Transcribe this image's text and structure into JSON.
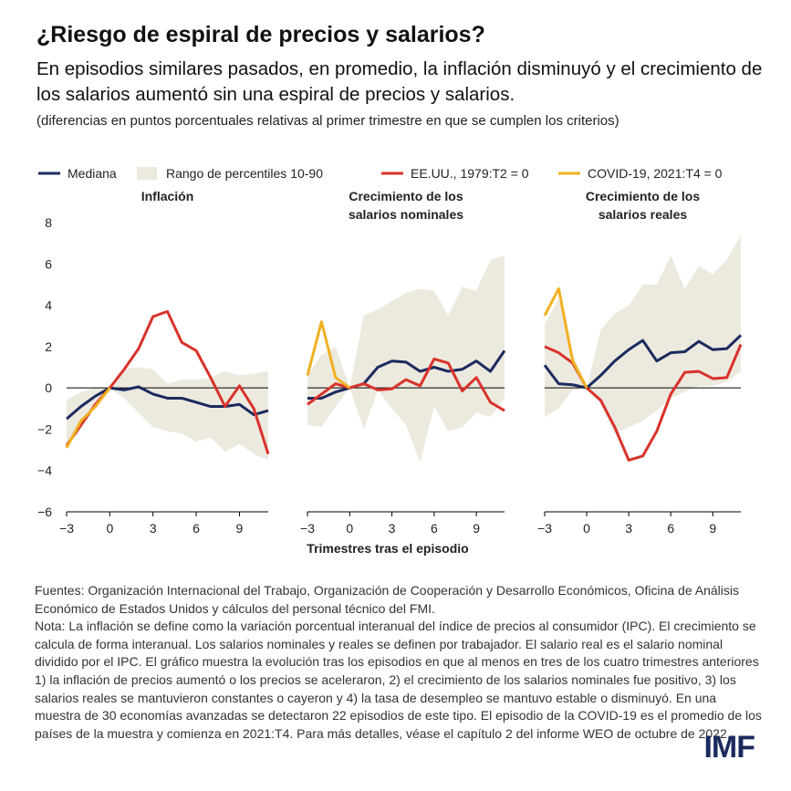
{
  "title": "¿Riesgo de espiral de precios y salarios?",
  "subtitle": "En episodios similares pasados, en promedio, la inflación disminuyó y el crecimiento de los salarios aumentó sin una espiral de precios y salarios.",
  "units_note": "(diferencias en puntos porcentuales relativas al primer trimestre en que se cumplen los criterios)",
  "notes": [
    "Fuentes: Organización Internacional del Trabajo, Organización de Cooperación y Desarrollo Económicos, Oficina de Análisis Económico de Estados Unidos y cálculos del personal técnico del FMI.",
    "Nota: La inflación se define como la variación porcentual interanual del índice de precios al consumidor (IPC). El crecimiento se calcula de forma interanual. Los salarios nominales y reales se definen por trabajador. El salario real es el salario nominal dividido por el IPC. El gráfico muestra la evolución tras los episodios en que al menos en tres de los cuatro trimestres anteriores 1) la inflación de precios aumentó o los precios se aceleraron, 2) el crecimiento de los salarios nominales fue positivo, 3) los salarios reales se mantuvieron constantes o cayeron y 4) la tasa de desempleo se mantuvo estable o disminuyó. En una muestra de 30 economías avanzadas se detectaron 22 episodios de este tipo. El episodio de la COVID-19 es el promedio de los países de la muestra y comienza en 2021:T4. Para más detalles, véase el capítulo 2 del informe WEO de octubre de 2022."
  ],
  "logo": "IMF",
  "chart_data": [
    {
      "type": "line",
      "title": "Inflación",
      "x": [
        -3,
        -2,
        -1,
        0,
        1,
        2,
        3,
        4,
        5,
        6,
        7,
        8,
        9,
        10,
        11
      ],
      "series": [
        {
          "name": "Rango de percentiles 10-90",
          "color": "#ece9df",
          "lower": [
            -2.8,
            -2,
            -0.9,
            0,
            -0.5,
            -1.2,
            -1.9,
            -2.1,
            -2.2,
            -2.6,
            -2.4,
            -3.1,
            -2.7,
            -3.2,
            -3.5
          ],
          "upper": [
            -0.6,
            -0.2,
            0,
            0,
            0.9,
            1,
            0.9,
            0.2,
            0.4,
            0.4,
            0.5,
            0.8,
            0.6,
            0.7,
            0.8
          ]
        },
        {
          "name": "Mediana",
          "color": "#1b2a5e",
          "values": [
            -1.5,
            -0.9,
            -0.4,
            0,
            -0.1,
            0.05,
            -0.3,
            -0.5,
            -0.5,
            -0.7,
            -0.9,
            -0.9,
            -0.8,
            -1.3,
            -1.1
          ]
        },
        {
          "name": "EE.UU., 1979:T2 = 0",
          "color": "#d9322a",
          "values": [
            -2.8,
            -1.8,
            -0.8,
            0,
            0.9,
            1.9,
            3.45,
            3.7,
            2.2,
            1.8,
            0.5,
            -0.9,
            0.1,
            -1,
            -3.2
          ]
        },
        {
          "name": "COVID-19, 2021:T4 = 0",
          "color": "#f0b020",
          "values": [
            -2.9,
            -1.6,
            -0.9,
            0,
            null,
            null,
            null,
            null,
            null,
            null,
            null,
            null,
            null,
            null,
            null
          ]
        }
      ],
      "xlim": [
        -3,
        11
      ],
      "xticks": [
        {
          "value": -3,
          "label": "−3"
        },
        0,
        3,
        6,
        9
      ],
      "ylim": [
        -6,
        8
      ],
      "yticks": [
        {
          "value": -6,
          "label": "−6"
        },
        {
          "value": -4,
          "label": "−4"
        },
        {
          "value": -2,
          "label": "−2"
        },
        0,
        2,
        4,
        6,
        8
      ]
    },
    {
      "type": "line",
      "title": "Crecimiento de los salarios nominales",
      "x_label": "Trimestres tras el episodio",
      "x": [
        -3,
        -2,
        -1,
        0,
        1,
        2,
        3,
        4,
        5,
        6,
        7,
        8,
        9,
        10,
        11
      ],
      "series": [
        {
          "name": "Rango de percentiles 10-90",
          "color": "#ece9df",
          "lower": [
            -1.8,
            -1.9,
            -0.9,
            0,
            -2,
            -0.1,
            -1,
            -1.8,
            -3.6,
            -0.9,
            -2.1,
            -1.9,
            -1.2,
            -1.4,
            -0.5
          ],
          "upper": [
            0.6,
            1.6,
            2,
            0,
            3.5,
            3.8,
            4.2,
            4.6,
            4.8,
            4.7,
            3.5,
            4.9,
            4.7,
            6.2,
            6.4
          ]
        },
        {
          "name": "Mediana",
          "color": "#1b2a5e",
          "values": [
            -0.5,
            -0.5,
            -0.2,
            0,
            0.2,
            1,
            1.3,
            1.25,
            0.8,
            1,
            0.8,
            0.9,
            1.3,
            0.8,
            1.8
          ]
        },
        {
          "name": "EE.UU., 1979:T2 = 0",
          "color": "#d9322a",
          "values": [
            -0.8,
            -0.3,
            0.2,
            0,
            0.2,
            -0.1,
            -0.05,
            0.4,
            0.1,
            1.4,
            1.2,
            -0.15,
            0.5,
            -0.7,
            -1.1
          ]
        },
        {
          "name": "COVID-19, 2021:T4 = 0",
          "color": "#f0b020",
          "values": [
            0.6,
            3.2,
            0.5,
            0,
            null,
            null,
            null,
            null,
            null,
            null,
            null,
            null,
            null,
            null,
            null
          ]
        }
      ],
      "xlim": [
        -3,
        11
      ],
      "xticks": [
        {
          "value": -3,
          "label": "−3"
        },
        0,
        3,
        6,
        9
      ],
      "ylim": [
        -6,
        8
      ]
    },
    {
      "type": "line",
      "title": "Crecimiento de los salarios reales",
      "x": [
        -3,
        -2,
        -1,
        0,
        1,
        2,
        3,
        4,
        5,
        6,
        7,
        8,
        9,
        10,
        11
      ],
      "series": [
        {
          "name": "Rango de percentiles 10-90",
          "color": "#ece9df",
          "lower": [
            -1.4,
            -1,
            -0.1,
            0,
            -0.8,
            -2.2,
            -1.9,
            -1.6,
            -1.1,
            -0.5,
            -0.2,
            0.1,
            0.1,
            0.3,
            0.8
          ],
          "upper": [
            3.1,
            4.3,
            1.7,
            0,
            2.8,
            3.6,
            4,
            5,
            5,
            6.4,
            4.8,
            5.9,
            5.5,
            6.2,
            7.4
          ]
        },
        {
          "name": "Mediana",
          "color": "#1b2a5e",
          "values": [
            1.1,
            0.2,
            0.15,
            0,
            0.6,
            1.3,
            1.85,
            2.3,
            1.3,
            1.7,
            1.75,
            2.25,
            1.85,
            1.9,
            2.55
          ]
        },
        {
          "name": "EE.UU., 1979:T2 = 0",
          "color": "#d9322a",
          "values": [
            2,
            1.7,
            1.2,
            0,
            -0.6,
            -1.9,
            -3.5,
            -3.3,
            -2.1,
            -0.3,
            0.75,
            0.8,
            0.45,
            0.5,
            2.1
          ]
        },
        {
          "name": "COVID-19, 2021:T4 = 0",
          "color": "#f0b020",
          "values": [
            3.5,
            4.8,
            1.3,
            0,
            null,
            null,
            null,
            null,
            null,
            null,
            null,
            null,
            null,
            null,
            null
          ]
        }
      ],
      "xlim": [
        -3,
        11
      ],
      "xticks": [
        {
          "value": -3,
          "label": "−3"
        },
        0,
        3,
        6,
        9
      ],
      "ylim": [
        -6,
        8
      ]
    }
  ]
}
